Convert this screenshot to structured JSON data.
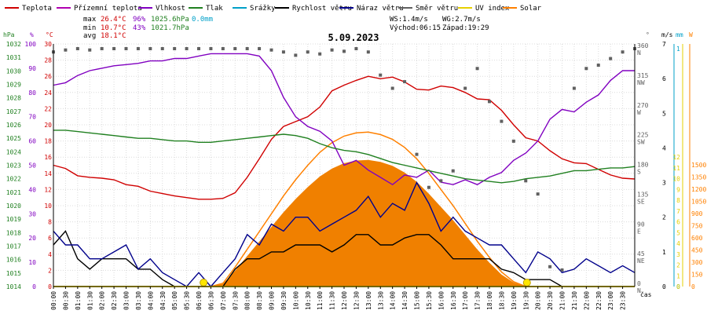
{
  "legend": [
    {
      "label": "Teplota",
      "color": "#d00000"
    },
    {
      "label": "Přízemní teplota",
      "color": "#b000b0"
    },
    {
      "label": "Vlhkost",
      "color": "#8000c0"
    },
    {
      "label": "Tlak",
      "color": "#208020"
    },
    {
      "label": "Srážky",
      "color": "#00a0c8"
    },
    {
      "label": "Rychlost větru",
      "color": "#000000"
    },
    {
      "label": "Náraz větru",
      "color": "#00008b"
    },
    {
      "label": "Směr větru",
      "color": "#606060"
    },
    {
      "label": "UV index",
      "color": "#e6d000"
    },
    {
      "label": "Solar",
      "color": "#ff8000"
    }
  ],
  "stats": {
    "max_label": "max",
    "max_temp": "26.4°C",
    "max_hum": "96%",
    "max_press": "1025.6hPa",
    "max_rain": "0.0mm",
    "min_label": "min",
    "min_temp": "10.7°C",
    "min_hum": "43%",
    "min_press": "1021.7hPa",
    "avg_label": "avg",
    "avg_temp": "18.1°C"
  },
  "wind_info": {
    "ws": "WS:1.4m/s",
    "wg": "WG:2.7m/s",
    "sunrise": "Východ:06:15",
    "sunset": "Západ:19:29"
  },
  "axis_units": {
    "hpa": "hPa",
    "pct": "%",
    "degc": "°C",
    "deg": "°",
    "ms": "m/s",
    "mm": "mm",
    "w": "W",
    "cas": "čas"
  },
  "chart_data": {
    "type": "line",
    "title": "5.09.2023",
    "x_ticks": [
      "00:00",
      "00:30",
      "01:00",
      "01:30",
      "02:00",
      "02:30",
      "03:00",
      "03:30",
      "04:00",
      "04:30",
      "05:00",
      "05:30",
      "06:00",
      "06:30",
      "07:00",
      "07:30",
      "08:00",
      "08:30",
      "09:00",
      "09:30",
      "10:00",
      "10:30",
      "11:00",
      "11:30",
      "12:00",
      "12:30",
      "13:00",
      "13:30",
      "14:00",
      "14:30",
      "15:00",
      "15:30",
      "16:00",
      "16:30",
      "17:00",
      "17:30",
      "18:00",
      "18:30",
      "19:00",
      "19:30",
      "20:00",
      "20:30",
      "21:00",
      "21:30",
      "22:00",
      "22:30",
      "23:00",
      "23:30"
    ],
    "xlim_hours": [
      0,
      24
    ],
    "axes": {
      "pressure_hpa": {
        "min": 1014,
        "max": 1032,
        "ticks": [
          1014,
          1015,
          1016,
          1017,
          1018,
          1019,
          1020,
          1021,
          1022,
          1023,
          1024,
          1025,
          1026,
          1027,
          1028,
          1029,
          1030,
          1031,
          1032
        ]
      },
      "humidity_pct": {
        "min": 0,
        "max": 100,
        "ticks": [
          0,
          10,
          20,
          30,
          40,
          50,
          60,
          70,
          80,
          90,
          100
        ]
      },
      "temperature_c": {
        "min": 0,
        "max": 30,
        "ticks": [
          0,
          2,
          4,
          6,
          8,
          10,
          12,
          14,
          16,
          18,
          20,
          22,
          24,
          26,
          28,
          30
        ]
      },
      "wind_dir_deg": {
        "ticks": [
          {
            "v": 0,
            "l": "0",
            "d": "N"
          },
          {
            "v": 45,
            "l": "45",
            "d": "NE"
          },
          {
            "v": 90,
            "l": "90",
            "d": "E"
          },
          {
            "v": 135,
            "l": "135",
            "d": "SE"
          },
          {
            "v": 180,
            "l": "180",
            "d": "S"
          },
          {
            "v": 225,
            "l": "225",
            "d": "SW"
          },
          {
            "v": 270,
            "l": "270",
            "d": "W"
          },
          {
            "v": 315,
            "l": "315",
            "d": "NW"
          },
          {
            "v": 360,
            "l": "360",
            "d": "N"
          }
        ]
      },
      "wind_ms": {
        "min": 0,
        "max": 7,
        "ticks": [
          0,
          1,
          2,
          3,
          4,
          5,
          6,
          7
        ]
      },
      "rain_mm": {
        "min": 0,
        "max": 1,
        "ticks": [
          0,
          1
        ]
      },
      "uv": {
        "min": 0,
        "max": 12,
        "ticks": [
          0,
          1,
          2,
          3,
          4,
          5,
          6,
          7,
          8,
          9,
          10,
          11,
          12
        ]
      },
      "solar_w": {
        "min": 0,
        "max": 1500,
        "ticks": [
          0,
          150,
          300,
          450,
          600,
          750,
          900,
          1050,
          1200,
          1350,
          1500
        ]
      }
    },
    "series": [
      {
        "name": "Teplota",
        "color": "#d00000",
        "axis": "temperature_c",
        "x": [
          0,
          0.5,
          1,
          1.5,
          2,
          2.5,
          3,
          3.5,
          4,
          4.5,
          5,
          5.5,
          6,
          6.5,
          7,
          7.5,
          8,
          8.5,
          9,
          9.5,
          10,
          10.5,
          11,
          11.5,
          12,
          12.5,
          13,
          13.5,
          14,
          14.5,
          15,
          15.5,
          16,
          16.5,
          17,
          17.5,
          18,
          18.5,
          19,
          19.5,
          20,
          20.5,
          21,
          21.5,
          22,
          22.5,
          23,
          23.5,
          24
        ],
        "y": [
          15,
          14.6,
          13.7,
          13.5,
          13.4,
          13.2,
          12.6,
          12.4,
          11.8,
          11.5,
          11.2,
          11,
          10.8,
          10.8,
          10.9,
          11.6,
          13.5,
          15.8,
          18.2,
          19.8,
          20.4,
          21,
          22.2,
          24.2,
          24.9,
          25.5,
          26,
          25.7,
          25.9,
          25.3,
          24.4,
          24.3,
          24.8,
          24.6,
          24,
          23.2,
          23.1,
          21.8,
          20,
          18.4,
          18,
          16.8,
          15.8,
          15.3,
          15.2,
          14.5,
          13.8,
          13.4,
          13.3
        ]
      },
      {
        "name": "Vlhkost",
        "color": "#8000c0",
        "axis": "humidity_pct",
        "x": [
          0,
          0.5,
          1,
          1.5,
          2,
          2.5,
          3,
          3.5,
          4,
          4.5,
          5,
          5.5,
          6,
          6.5,
          7,
          7.5,
          8,
          8.5,
          9,
          9.5,
          10,
          10.5,
          11,
          11.5,
          12,
          12.5,
          13,
          13.5,
          14,
          14.5,
          15,
          15.5,
          16,
          16.5,
          17,
          17.5,
          18,
          18.5,
          19,
          19.5,
          20,
          20.5,
          21,
          21.5,
          22,
          22.5,
          23,
          23.5,
          24
        ],
        "y": [
          83,
          84,
          87,
          89,
          90,
          91,
          91.5,
          92,
          93,
          93,
          94,
          94,
          95,
          96,
          96,
          96,
          96,
          95,
          89,
          78,
          70,
          66,
          64,
          60,
          50,
          52,
          48,
          45,
          42,
          46,
          45,
          48,
          43,
          42,
          44,
          42,
          45,
          47,
          52,
          55,
          60,
          69,
          73,
          72,
          76,
          79,
          85,
          89,
          89
        ]
      },
      {
        "name": "Tlak",
        "color": "#208020",
        "axis": "pressure_hpa",
        "x": [
          0,
          0.5,
          1,
          1.5,
          2,
          2.5,
          3,
          3.5,
          4,
          4.5,
          5,
          5.5,
          6,
          6.5,
          7,
          7.5,
          8,
          8.5,
          9,
          9.5,
          10,
          10.5,
          11,
          11.5,
          12,
          12.5,
          13,
          13.5,
          14,
          14.5,
          15,
          15.5,
          16,
          16.5,
          17,
          17.5,
          18,
          18.5,
          19,
          19.5,
          20,
          20.5,
          21,
          21.5,
          22,
          22.5,
          23,
          23.5,
          24
        ],
        "y": [
          1025.6,
          1025.6,
          1025.5,
          1025.4,
          1025.3,
          1025.2,
          1025.1,
          1025,
          1025,
          1024.9,
          1024.8,
          1024.8,
          1024.7,
          1024.7,
          1024.8,
          1024.9,
          1025,
          1025.1,
          1025.2,
          1025.3,
          1025.2,
          1025,
          1024.6,
          1024.3,
          1024.1,
          1024,
          1023.8,
          1023.5,
          1023.2,
          1023,
          1022.8,
          1022.6,
          1022.4,
          1022.2,
          1022,
          1021.9,
          1021.8,
          1021.7,
          1021.8,
          1022,
          1022.1,
          1022.2,
          1022.4,
          1022.6,
          1022.6,
          1022.7,
          1022.8,
          1022.8,
          1022.9
        ]
      },
      {
        "name": "Rychlost větru",
        "color": "#000000",
        "axis": "wind_ms",
        "x": [
          0,
          0.5,
          1,
          1.5,
          2,
          2.5,
          3,
          3.5,
          4,
          4.5,
          5,
          5.5,
          6,
          6.5,
          7,
          7.5,
          8,
          8.5,
          9,
          9.5,
          10,
          10.5,
          11,
          11.5,
          12,
          12.5,
          13,
          13.5,
          14,
          14.5,
          15,
          15.5,
          16,
          16.5,
          17,
          17.5,
          18,
          18.5,
          19,
          19.5,
          20,
          20.5,
          21,
          21.5,
          22,
          22.5,
          23,
          23.5,
          24
        ],
        "y": [
          1.2,
          1.6,
          0.8,
          0.5,
          0.8,
          0.8,
          0.8,
          0.5,
          0.5,
          0.2,
          0,
          0,
          0,
          0,
          0,
          0.5,
          0.8,
          0.8,
          1,
          1,
          1.2,
          1.2,
          1.2,
          1,
          1.2,
          1.5,
          1.5,
          1.2,
          1.2,
          1.4,
          1.5,
          1.5,
          1.2,
          0.8,
          0.8,
          0.8,
          0.8,
          0.5,
          0.4,
          0.2,
          0.2,
          0.2,
          0,
          0,
          0,
          0,
          0,
          0,
          0
        ]
      },
      {
        "name": "Náraz větru",
        "color": "#00008b",
        "axis": "wind_ms",
        "x": [
          0,
          0.5,
          1,
          1.5,
          2,
          2.5,
          3,
          3.5,
          4,
          4.5,
          5,
          5.5,
          6,
          6.5,
          7,
          7.5,
          8,
          8.5,
          9,
          9.5,
          10,
          10.5,
          11,
          11.5,
          12,
          12.5,
          13,
          13.5,
          14,
          14.5,
          15,
          15.5,
          16,
          16.5,
          17,
          17.5,
          18,
          18.5,
          19,
          19.5,
          20,
          20.5,
          21,
          21.5,
          22,
          22.5,
          23,
          23.5,
          24
        ],
        "y": [
          1.6,
          1.2,
          1.2,
          0.8,
          0.8,
          1,
          1.2,
          0.5,
          0.8,
          0.4,
          0.2,
          0,
          0.4,
          0,
          0.4,
          0.8,
          1.5,
          1.2,
          1.8,
          1.6,
          2,
          2,
          1.6,
          1.8,
          2,
          2.2,
          2.6,
          2,
          2.4,
          2.2,
          3,
          2.4,
          1.6,
          2,
          1.6,
          1.4,
          1.2,
          1.2,
          0.8,
          0.4,
          1,
          0.8,
          0.4,
          0.5,
          0.8,
          0.6,
          0.4,
          0.6,
          0.4
        ]
      },
      {
        "name": "Směr větru",
        "color": "#606060",
        "axis": "wind_dir_deg",
        "kind": "points",
        "x": [
          0,
          0.5,
          1,
          1.5,
          2,
          2.5,
          3,
          3.5,
          4,
          4.5,
          5,
          5.5,
          6,
          6.5,
          7,
          7.5,
          8,
          8.5,
          9,
          9.5,
          10,
          10.5,
          11,
          11.5,
          12,
          12.5,
          13,
          13.5,
          14,
          14.5,
          15,
          15.5,
          16,
          16.5,
          17,
          17.5,
          18,
          18.5,
          19,
          19.5,
          20,
          20.5,
          21,
          21.5,
          22,
          22.5,
          23,
          23.5,
          24
        ],
        "y": [
          355,
          358,
          360,
          358,
          360,
          360,
          360,
          360,
          360,
          360,
          360,
          360,
          360,
          360,
          360,
          360,
          360,
          360,
          358,
          355,
          350,
          355,
          352,
          358,
          356,
          360,
          355,
          320,
          300,
          310,
          200,
          150,
          160,
          175,
          300,
          330,
          280,
          250,
          220,
          160,
          140,
          30,
          25,
          300,
          330,
          335,
          345,
          355,
          360
        ]
      },
      {
        "name": "UV index",
        "color": "#e6d000",
        "axis": "uv",
        "x": [
          0,
          6.2,
          6.3,
          19.5,
          19.6,
          24
        ],
        "y": [
          0,
          0,
          0,
          0,
          0,
          0
        ]
      },
      {
        "name": "Solar",
        "color": "#ff8000",
        "axis": "solar_w",
        "x": [
          0,
          6.5,
          7,
          7.5,
          8,
          8.5,
          9,
          9.5,
          10,
          10.5,
          11,
          11.5,
          12,
          12.5,
          13,
          13.5,
          14,
          14.5,
          15,
          15.5,
          16,
          16.5,
          17,
          17.5,
          18,
          18.5,
          19,
          19.5,
          20,
          24
        ],
        "y": [
          0,
          0,
          20,
          120,
          230,
          340,
          450,
          560,
          660,
          750,
          830,
          890,
          930,
          950,
          955,
          940,
          910,
          860,
          790,
          700,
          600,
          500,
          390,
          280,
          180,
          90,
          30,
          0,
          0,
          0
        ]
      }
    ]
  }
}
